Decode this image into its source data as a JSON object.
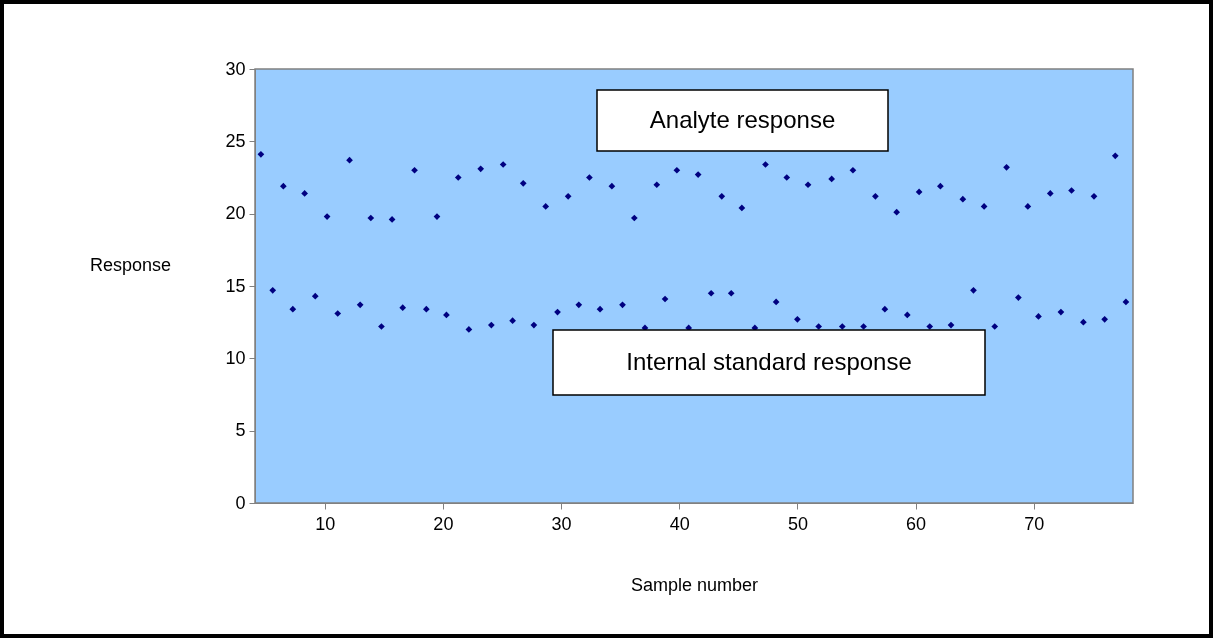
{
  "chart_data": {
    "type": "scatter",
    "xlabel": "Sample number",
    "ylabel": "Response",
    "xlim": [
      4.1,
      78.4
    ],
    "xticks": [
      10,
      20,
      30,
      40,
      50,
      60,
      70
    ],
    "ylim": [
      0,
      30
    ],
    "yticks": [
      0,
      5,
      10,
      15,
      20,
      25,
      30
    ],
    "marker": "diamond",
    "legend": false,
    "grid": false,
    "series": [
      {
        "name": "Analyte response",
        "color": "#000080",
        "x": [
          4.6,
          6.5,
          8.3,
          10.2,
          12.1,
          13.9,
          15.7,
          17.6,
          19.5,
          21.3,
          23.2,
          25.1,
          26.8,
          28.7,
          30.6,
          32.4,
          34.3,
          36.2,
          38.1,
          39.8,
          41.6,
          43.6,
          45.3,
          47.3,
          49.1,
          50.9,
          52.9,
          54.7,
          56.6,
          58.4,
          60.3,
          62.1,
          64.0,
          65.8,
          67.7,
          69.5,
          71.4,
          73.2,
          75.1,
          76.9
        ],
        "values": [
          24.1,
          21.9,
          21.4,
          19.8,
          23.7,
          19.7,
          19.6,
          23.0,
          19.8,
          22.5,
          23.1,
          23.4,
          22.1,
          20.5,
          21.2,
          22.5,
          21.9,
          19.7,
          22.0,
          23.0,
          22.7,
          21.2,
          20.4,
          23.4,
          22.5,
          22.0,
          22.4,
          23.0,
          21.2,
          20.1,
          21.5,
          21.9,
          21.0,
          20.5,
          23.2,
          20.5,
          21.4,
          21.6,
          21.2,
          24.0
        ]
      },
      {
        "name": "Internal standard response",
        "color": "#000080",
        "x": [
          5.6,
          7.3,
          9.2,
          11.1,
          13.0,
          14.8,
          16.6,
          18.6,
          20.3,
          22.2,
          24.1,
          25.9,
          27.7,
          29.7,
          31.5,
          33.3,
          35.2,
          37.1,
          38.8,
          40.8,
          42.7,
          44.4,
          46.4,
          48.2,
          50.0,
          51.8,
          53.8,
          55.6,
          57.4,
          59.3,
          61.2,
          63.0,
          64.9,
          66.7,
          68.7,
          70.4,
          72.3,
          74.2,
          76.0,
          77.8
        ],
        "values": [
          14.7,
          13.4,
          14.3,
          13.1,
          13.7,
          12.2,
          13.5,
          13.4,
          13.0,
          12.0,
          12.3,
          12.6,
          12.3,
          13.2,
          13.7,
          13.4,
          13.7,
          12.1,
          14.1,
          12.1,
          14.5,
          14.5,
          12.1,
          13.9,
          12.7,
          12.2,
          12.2,
          12.2,
          13.4,
          13.0,
          12.2,
          12.3,
          14.7,
          12.2,
          14.2,
          12.9,
          13.2,
          12.5,
          12.7,
          13.9
        ]
      }
    ]
  }
}
